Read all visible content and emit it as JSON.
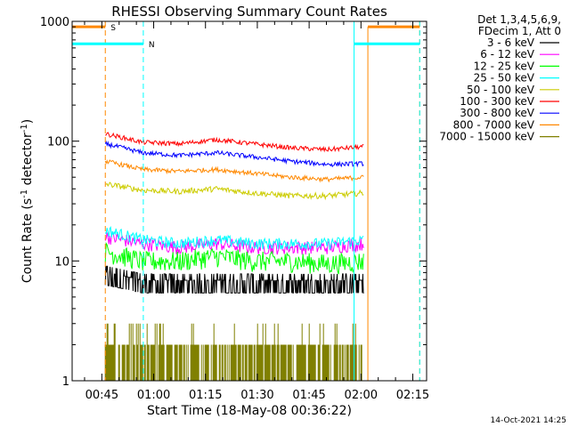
{
  "chart_data": {
    "type": "line",
    "title": "RHESSI Observing Summary Count Rates",
    "xlabel": "Start Time (18-May-08 00:36:22)",
    "ylabel_main": "Count Rate (s",
    "ylabel_sup1": "-1",
    "ylabel_mid": " detector",
    "ylabel_sup2": "-1",
    "ylabel_end": ")",
    "yscale": "log",
    "ylim": [
      1,
      1000
    ],
    "xlim_minutes": [
      36.4,
      139.0
    ],
    "x_ticks": [
      {
        "label": "00:45",
        "minutes": 45
      },
      {
        "label": "01:00",
        "minutes": 60
      },
      {
        "label": "01:15",
        "minutes": 75
      },
      {
        "label": "01:30",
        "minutes": 90
      },
      {
        "label": "01:45",
        "minutes": 105
      },
      {
        "label": "02:00",
        "minutes": 120
      },
      {
        "label": "02:15",
        "minutes": 135
      }
    ],
    "y_ticks": [
      {
        "label": "1",
        "value": 1
      },
      {
        "label": "10",
        "value": 10
      },
      {
        "label": "100",
        "value": 100
      },
      {
        "label": "1000",
        "value": 1000
      }
    ],
    "legend_header": [
      "Det 1,3,4,5,6,9,",
      "FDecim 1, Att 0"
    ],
    "legend_position": "right",
    "series": [
      {
        "name": "3 - 6 keV",
        "color": "#000000",
        "x_range_minutes": [
          46,
          121
        ],
        "values": [
          7,
          6,
          6,
          6,
          6,
          6,
          6,
          6
        ],
        "noise": 0.15,
        "dense": true
      },
      {
        "name": "6 - 12 keV",
        "color": "#ff00ff",
        "x_range_minutes": [
          46,
          121
        ],
        "values": [
          16,
          14,
          13,
          14,
          13,
          13,
          13,
          14
        ],
        "noise": 0.06
      },
      {
        "name": "12 - 25 keV",
        "color": "#00ff00",
        "x_range_minutes": [
          46,
          121
        ],
        "values": [
          12,
          10,
          10,
          11,
          10,
          10,
          9.5,
          10
        ],
        "noise": 0.09
      },
      {
        "name": "25 - 50 keV",
        "color": "#00ffff",
        "x_range_minutes": [
          46,
          121
        ],
        "values": [
          18,
          15,
          14,
          15,
          14,
          14,
          14,
          15
        ],
        "noise": 0.05
      },
      {
        "name": "50 - 100 keV",
        "color": "#cccc00",
        "x_range_minutes": [
          46,
          121
        ],
        "values": [
          44,
          39,
          38,
          40,
          37,
          35,
          35,
          37
        ],
        "noise": 0.025
      },
      {
        "name": "100 - 300 keV",
        "color": "#ff0000",
        "x_range_minutes": [
          46,
          121
        ],
        "values": [
          115,
          98,
          95,
          103,
          95,
          88,
          85,
          90
        ],
        "noise": 0.02
      },
      {
        "name": "300 - 800 keV",
        "color": "#0000ff",
        "x_range_minutes": [
          46,
          121
        ],
        "values": [
          95,
          80,
          76,
          80,
          74,
          68,
          64,
          65
        ],
        "noise": 0.02
      },
      {
        "name": "800 - 7000 keV",
        "color": "#ff8800",
        "x_range_minutes": [
          46,
          121
        ],
        "values": [
          68,
          58,
          56,
          58,
          54,
          50,
          48,
          50
        ],
        "noise": 0.02
      },
      {
        "name": "7000 - 15000 keV",
        "color": "#808000",
        "x_range_minutes": [
          46,
          121
        ],
        "values": [
          1.5,
          1.5,
          1.5,
          1.5,
          1.5,
          1.5,
          1.5,
          1.5
        ],
        "noise": 0,
        "bars": true
      }
    ],
    "markers": [
      {
        "label": "S",
        "color": "#ff8800",
        "bar_x_minutes": [
          36.4,
          46
        ],
        "bar_level": 900,
        "solid_x_minutes": [],
        "dashed_x_minutes": [
          46,
          137
        ]
      },
      {
        "label": "N",
        "color": "#00ffff",
        "bar_x_minutes": [
          36.4,
          57
        ],
        "bar_level": 650,
        "solid_x_minutes": [
          36.4,
          118
        ],
        "dashed_x_minutes": [
          57,
          137
        ]
      }
    ],
    "right_bars": [
      {
        "color": "#ff8800",
        "x_minutes": [
          122,
          137
        ],
        "level": 900,
        "solid_x_minutes": 122
      },
      {
        "color": "#00ffff",
        "x_minutes": [
          118,
          137
        ],
        "level": 650
      }
    ]
  },
  "footer": {
    "timestamp": "14-Oct-2021 14:25"
  }
}
